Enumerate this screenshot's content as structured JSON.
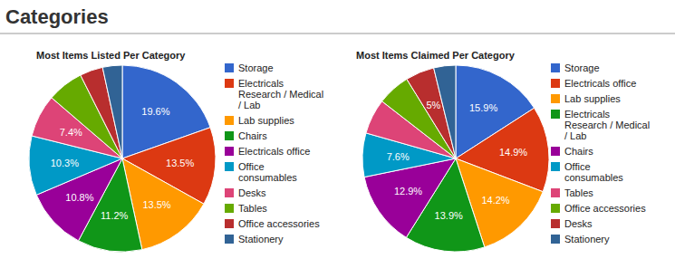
{
  "page_title": "Categories",
  "chart_data": [
    {
      "type": "pie",
      "title": "Most Items Listed Per Category",
      "categories": [
        "Storage",
        "Electricals Research / Medical / Lab",
        "Lab supplies",
        "Chairs",
        "Electricals office",
        "Office consumables",
        "Desks",
        "Tables",
        "Office accessories",
        "Stationery"
      ],
      "values": [
        19.6,
        13.5,
        13.5,
        11.2,
        10.8,
        10.3,
        7.4,
        6.3,
        4.0,
        3.4
      ],
      "value_labels": [
        "19.6%",
        "13.5%",
        "13.5%",
        "11.2%",
        "10.8%",
        "10.3%",
        "7.4%",
        null,
        null,
        null
      ],
      "colors": [
        "#3366cc",
        "#dc3912",
        "#ff9900",
        "#109618",
        "#990099",
        "#0099c6",
        "#dd4477",
        "#66aa00",
        "#b82e2e",
        "#316395"
      ],
      "data_labels": true,
      "legend": "right"
    },
    {
      "type": "pie",
      "title": "Most Items Claimed Per Category",
      "categories": [
        "Storage",
        "Electricals office",
        "Lab supplies",
        "Electricals Research / Medical / Lab",
        "Chairs",
        "Office consumables",
        "Tables",
        "Office accessories",
        "Desks",
        "Stationery"
      ],
      "values": [
        15.9,
        14.9,
        14.2,
        13.9,
        12.9,
        7.6,
        6.1,
        5.7,
        5.0,
        3.8
      ],
      "value_labels": [
        "15.9%",
        "14.9%",
        "14.2%",
        "13.9%",
        "12.9%",
        "7.6%",
        null,
        null,
        "5%",
        null
      ],
      "colors": [
        "#3366cc",
        "#dc3912",
        "#ff9900",
        "#109618",
        "#990099",
        "#0099c6",
        "#dd4477",
        "#66aa00",
        "#b82e2e",
        "#316395"
      ],
      "data_labels": true,
      "legend": "right"
    }
  ]
}
